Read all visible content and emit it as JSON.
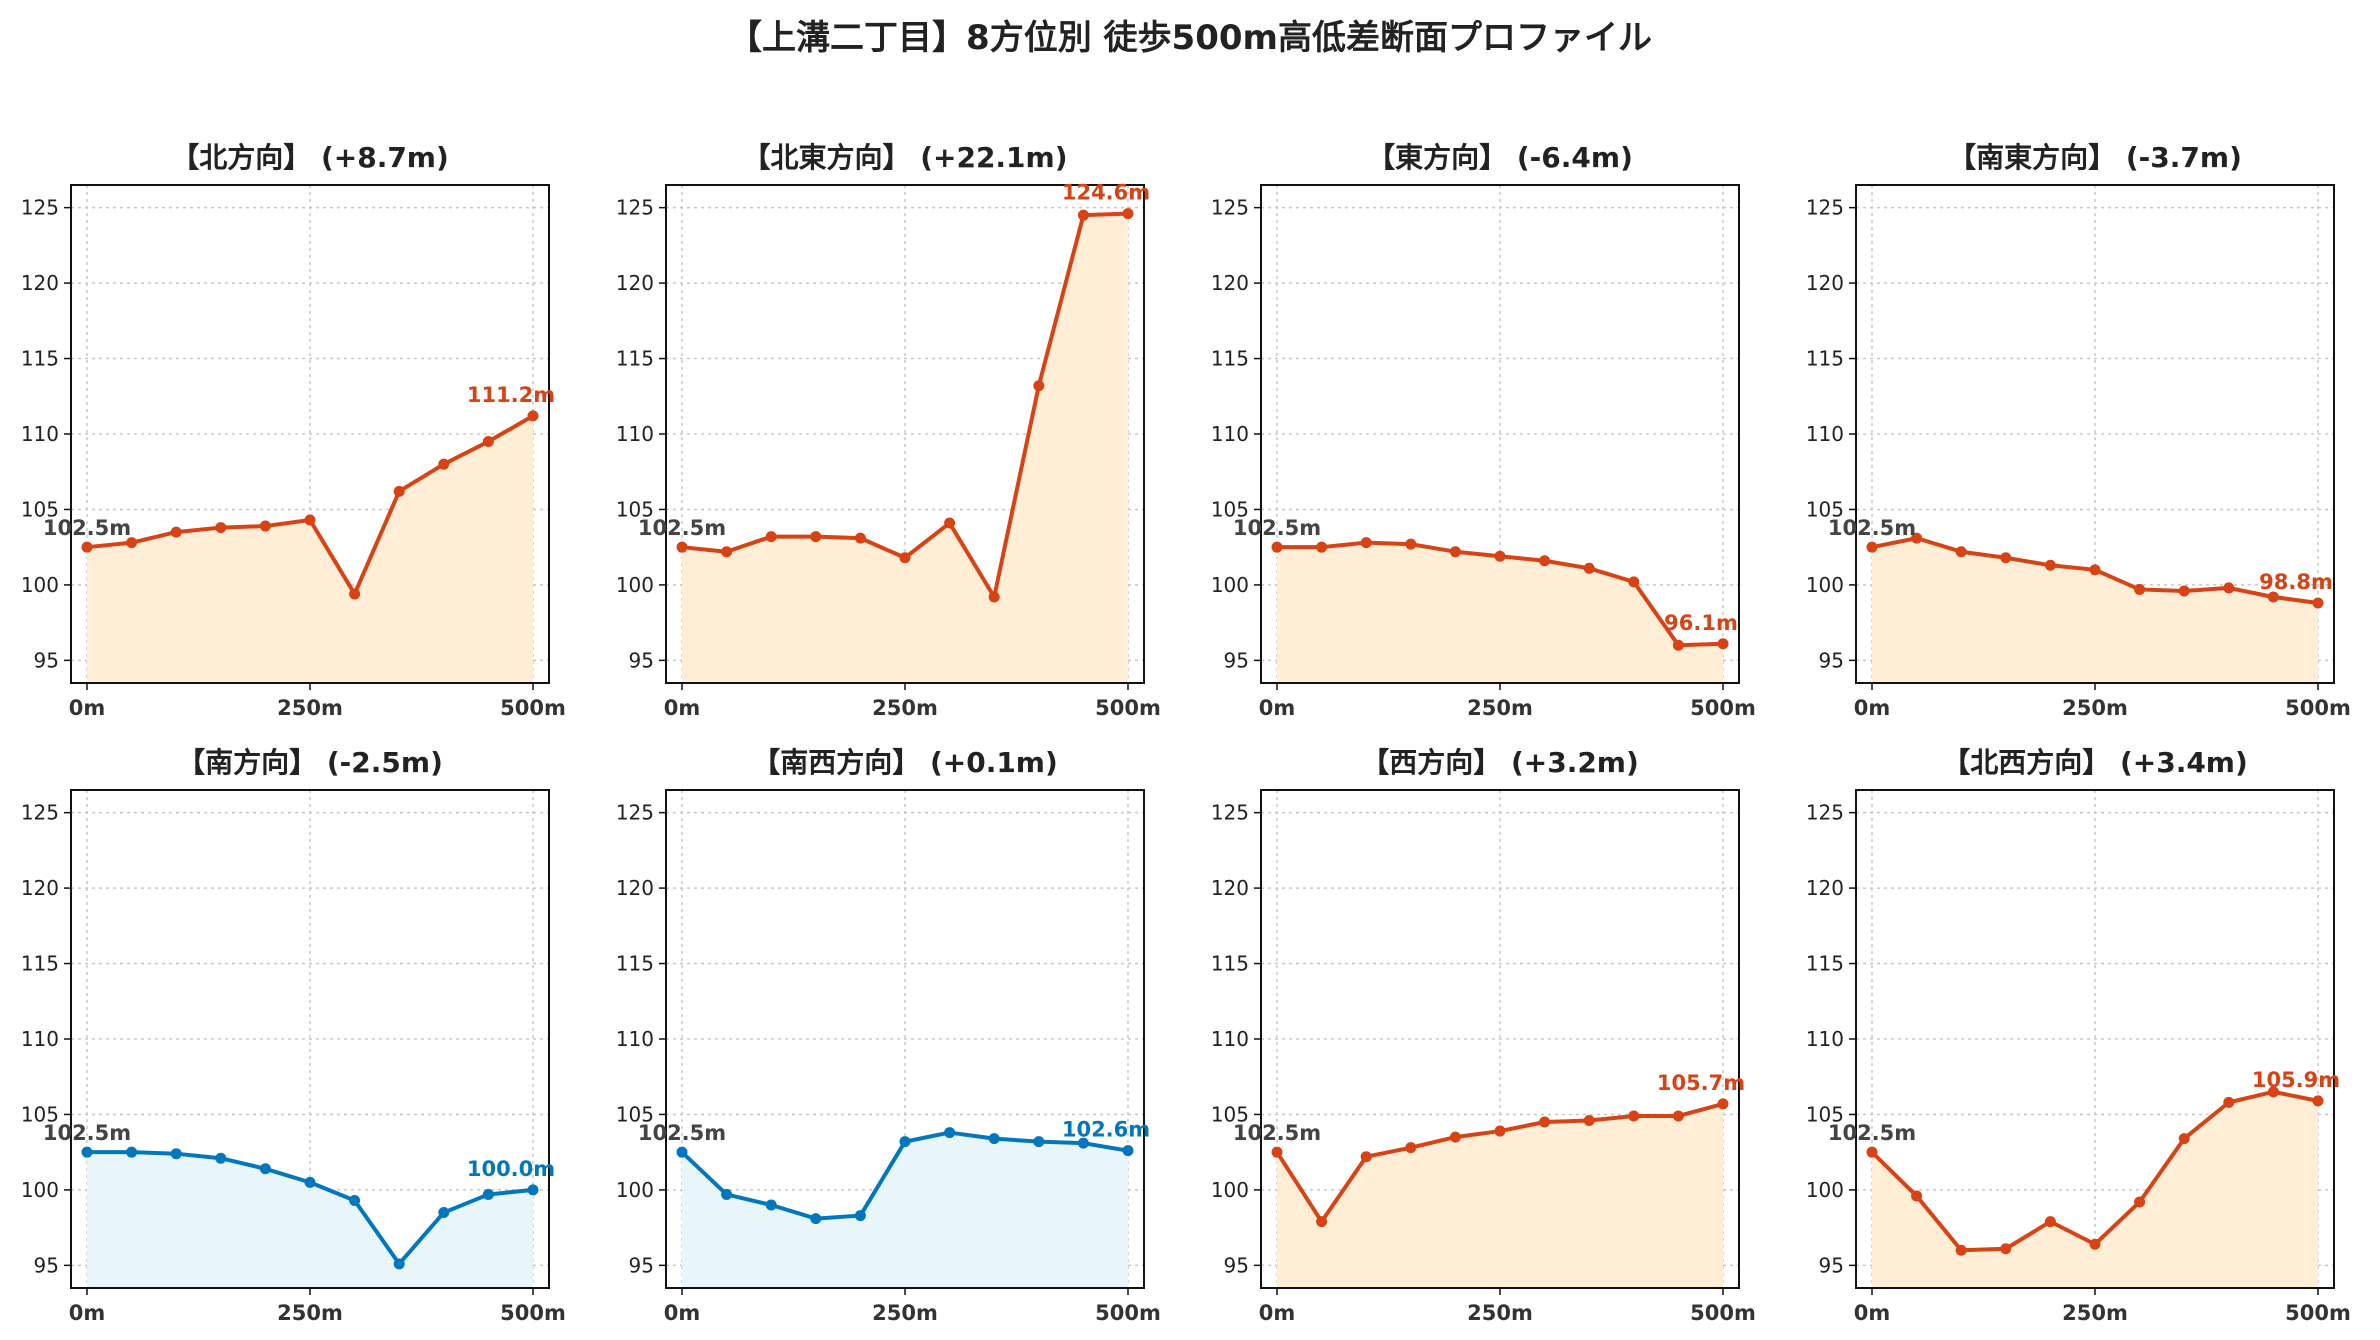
{
  "title": "【上溝二丁目】8方位別 徒歩500m高低差断面プロファイル",
  "colors": {
    "up_line": "#d84315",
    "up_fill": "#ffedd5",
    "down_line": "#0277bd",
    "down_fill": "#e8f6fc"
  },
  "chart_data": [
    {
      "type": "line",
      "title": "【北方向】 (+8.7m)",
      "theme": "up",
      "x": [
        0,
        50,
        100,
        150,
        200,
        250,
        300,
        350,
        400,
        450,
        500
      ],
      "y": [
        102.5,
        102.8,
        103.5,
        103.8,
        103.9,
        104.3,
        99.4,
        106.2,
        108.0,
        109.5,
        111.2
      ],
      "start_label": "102.5m",
      "end_label": "111.2m",
      "ylim": [
        93.5,
        126.5
      ],
      "yticks": [
        "95",
        "100",
        "105",
        "110",
        "115",
        "120",
        "125"
      ],
      "xticks": [
        "0m",
        "250m",
        "500m"
      ],
      "grid": true
    },
    {
      "type": "line",
      "title": "【北東方向】 (+22.1m)",
      "theme": "up",
      "x": [
        0,
        50,
        100,
        150,
        200,
        250,
        300,
        350,
        400,
        450,
        500
      ],
      "y": [
        102.5,
        102.2,
        103.2,
        103.2,
        103.1,
        101.8,
        104.1,
        99.2,
        113.2,
        124.5,
        124.6
      ],
      "start_label": "102.5m",
      "end_label": "124.6m",
      "ylim": [
        93.5,
        126.5
      ],
      "yticks": [
        "95",
        "100",
        "105",
        "110",
        "115",
        "120",
        "125"
      ],
      "xticks": [
        "0m",
        "250m",
        "500m"
      ],
      "grid": true
    },
    {
      "type": "line",
      "title": "【東方向】 (-6.4m)",
      "theme": "up",
      "x": [
        0,
        50,
        100,
        150,
        200,
        250,
        300,
        350,
        400,
        450,
        500
      ],
      "y": [
        102.5,
        102.5,
        102.8,
        102.7,
        102.2,
        101.9,
        101.6,
        101.1,
        100.2,
        96.0,
        96.1
      ],
      "start_label": "102.5m",
      "end_label": "96.1m",
      "ylim": [
        93.5,
        126.5
      ],
      "yticks": [
        "95",
        "100",
        "105",
        "110",
        "115",
        "120",
        "125"
      ],
      "xticks": [
        "0m",
        "250m",
        "500m"
      ],
      "grid": true
    },
    {
      "type": "line",
      "title": "【南東方向】 (-3.7m)",
      "theme": "up",
      "x": [
        0,
        50,
        100,
        150,
        200,
        250,
        300,
        350,
        400,
        450,
        500
      ],
      "y": [
        102.5,
        103.1,
        102.2,
        101.8,
        101.3,
        101.0,
        99.7,
        99.6,
        99.8,
        99.2,
        98.8
      ],
      "start_label": "102.5m",
      "end_label": "98.8m",
      "ylim": [
        93.5,
        126.5
      ],
      "yticks": [
        "95",
        "100",
        "105",
        "110",
        "115",
        "120",
        "125"
      ],
      "xticks": [
        "0m",
        "250m",
        "500m"
      ],
      "grid": true
    },
    {
      "type": "line",
      "title": "【南方向】 (-2.5m)",
      "theme": "down",
      "x": [
        0,
        50,
        100,
        150,
        200,
        250,
        300,
        350,
        400,
        450,
        500
      ],
      "y": [
        102.5,
        102.5,
        102.4,
        102.1,
        101.4,
        100.5,
        99.3,
        95.1,
        98.5,
        99.7,
        100.0
      ],
      "start_label": "102.5m",
      "end_label": "100.0m",
      "ylim": [
        93.5,
        126.5
      ],
      "yticks": [
        "95",
        "100",
        "105",
        "110",
        "115",
        "120",
        "125"
      ],
      "xticks": [
        "0m",
        "250m",
        "500m"
      ],
      "grid": true
    },
    {
      "type": "line",
      "title": "【南西方向】 (+0.1m)",
      "theme": "down",
      "x": [
        0,
        50,
        100,
        150,
        200,
        250,
        300,
        350,
        400,
        450,
        500
      ],
      "y": [
        102.5,
        99.7,
        99.0,
        98.1,
        98.3,
        103.2,
        103.8,
        103.4,
        103.2,
        103.1,
        102.6
      ],
      "start_label": "102.5m",
      "end_label": "102.6m",
      "ylim": [
        93.5,
        126.5
      ],
      "yticks": [
        "95",
        "100",
        "105",
        "110",
        "115",
        "120",
        "125"
      ],
      "xticks": [
        "0m",
        "250m",
        "500m"
      ],
      "grid": true
    },
    {
      "type": "line",
      "title": "【西方向】 (+3.2m)",
      "theme": "up",
      "x": [
        0,
        50,
        100,
        150,
        200,
        250,
        300,
        350,
        400,
        450,
        500
      ],
      "y": [
        102.5,
        97.9,
        102.2,
        102.8,
        103.5,
        103.9,
        104.5,
        104.6,
        104.9,
        104.9,
        105.7
      ],
      "start_label": "102.5m",
      "end_label": "105.7m",
      "ylim": [
        93.5,
        126.5
      ],
      "yticks": [
        "95",
        "100",
        "105",
        "110",
        "115",
        "120",
        "125"
      ],
      "xticks": [
        "0m",
        "250m",
        "500m"
      ],
      "grid": true
    },
    {
      "type": "line",
      "title": "【北西方向】 (+3.4m)",
      "theme": "up",
      "x": [
        0,
        50,
        100,
        150,
        200,
        250,
        300,
        350,
        400,
        450,
        500
      ],
      "y": [
        102.5,
        99.6,
        96.0,
        96.1,
        97.9,
        96.4,
        99.2,
        103.4,
        105.8,
        106.5,
        105.9
      ],
      "start_label": "102.5m",
      "end_label": "105.9m",
      "ylim": [
        93.5,
        126.5
      ],
      "yticks": [
        "95",
        "100",
        "105",
        "110",
        "115",
        "120",
        "125"
      ],
      "xticks": [
        "0m",
        "250m",
        "500m"
      ],
      "grid": true
    }
  ]
}
